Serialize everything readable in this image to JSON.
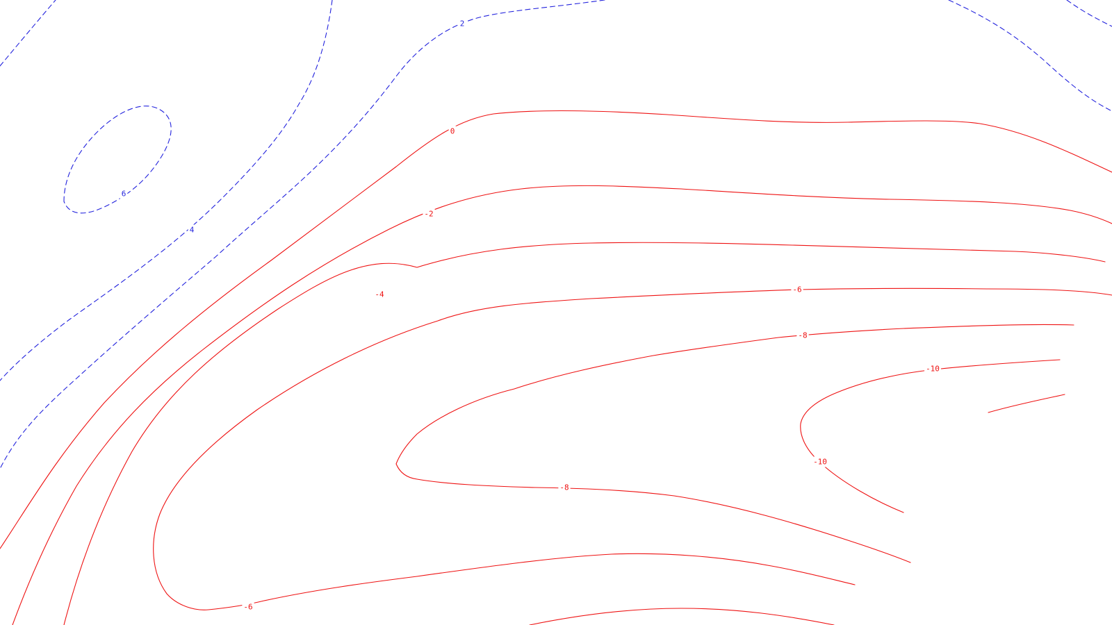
{
  "chart_data": {
    "type": "contour",
    "title": "",
    "xlabel": "",
    "ylabel": "",
    "grid": false,
    "legend": "none",
    "colors": {
      "positive": "#2222dd",
      "negative": "#ee1111",
      "background": "#ffffff"
    },
    "styles": {
      "positive": "dashed",
      "negative": "solid"
    },
    "levels": [
      {
        "value": 6,
        "label": "6",
        "sign": "positive"
      },
      {
        "value": 4,
        "label": "4",
        "sign": "positive"
      },
      {
        "value": 2,
        "label": "2",
        "sign": "positive"
      },
      {
        "value": 0,
        "label": "0",
        "sign": "negative"
      },
      {
        "value": -2,
        "label": "-2",
        "sign": "negative"
      },
      {
        "value": -4,
        "label": "-4",
        "sign": "negative"
      },
      {
        "value": -6,
        "label": "-6",
        "sign": "negative"
      },
      {
        "value": -8,
        "label": "-8",
        "sign": "negative"
      },
      {
        "value": -10,
        "label": "-10",
        "sign": "negative"
      }
    ]
  }
}
